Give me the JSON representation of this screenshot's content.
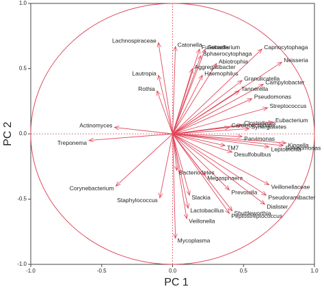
{
  "chart_data": {
    "type": "biplot",
    "xlabel": "PC 1",
    "ylabel": "PC 2",
    "color": "#e0475a",
    "xlim": [
      -1.0,
      1.0
    ],
    "ylim": [
      -1.0,
      1.0
    ],
    "xticks": [
      {
        "value": -1.0,
        "label": "-1.0"
      },
      -0.5,
      {
        "value": 0.0,
        "label": "0.0"
      },
      0.5,
      {
        "value": 1.0,
        "label": "1.0"
      }
    ],
    "yticks": [
      {
        "value": -1.0,
        "label": "-1.0"
      },
      -0.5,
      {
        "value": 0.0,
        "label": "0.0"
      },
      0.5,
      {
        "value": 1.0,
        "label": "1.0"
      }
    ],
    "labels": [
      "Lachnospiraceae",
      "Catonella",
      "Fusobacterium",
      "Gemella",
      "Sphaerocytophaga",
      "Abiotrophia",
      "Aggregatibacter",
      "Haemophilus",
      "Lautropia",
      "Rothia",
      "Capnocytophaga",
      "Neisseria",
      "Granulicatella",
      "Campylobacter",
      "Tannerella",
      "Pseudomonas",
      "Streptococcus",
      "Clostridiales",
      "Eubacterium",
      "Cardiobacterium",
      "Synergistetes",
      "Actinomyces",
      "Parvimonas",
      "Treponema",
      "Kingella",
      "TM7",
      "Desulfobulbus",
      "Leptotrichia",
      "Selenomonas",
      "Bacteriodetes",
      "Megasphaera",
      "Prevotella",
      "Veillonellaceae",
      "Pseudoramibacter",
      "Staphylococcus",
      "Slackia",
      "Corynebacterium",
      "Lactobacillus",
      "Peptostreptococcus",
      "Veillonella",
      "Dialister",
      "Shuttleworthia",
      "Mycoplasma"
    ],
    "x": [
      -0.1,
      0.02,
      0.19,
      0.23,
      0.2,
      0.31,
      0.14,
      0.21,
      -0.1,
      -0.11,
      0.63,
      0.77,
      0.49,
      0.64,
      0.47,
      0.56,
      0.67,
      0.49,
      0.71,
      0.4,
      0.54,
      -0.41,
      0.49,
      -0.59,
      0.8,
      0.37,
      0.42,
      0.68,
      0.78,
      0.03,
      0.23,
      0.4,
      0.68,
      0.66,
      -0.09,
      0.12,
      -0.4,
      0.11,
      0.4,
      0.1,
      0.65,
      0.42,
      0.02
    ],
    "values": [
      0.7,
      0.67,
      0.65,
      0.65,
      0.6,
      0.54,
      0.5,
      0.45,
      0.45,
      0.33,
      0.65,
      0.55,
      0.41,
      0.38,
      0.33,
      0.27,
      0.2,
      0.07,
      0.09,
      0.05,
      0.04,
      0.05,
      -0.02,
      -0.05,
      -0.07,
      -0.09,
      -0.14,
      -0.1,
      -0.09,
      -0.28,
      -0.32,
      -0.43,
      -0.39,
      -0.47,
      -0.49,
      -0.47,
      -0.4,
      -0.57,
      -0.61,
      -0.65,
      -0.54,
      -0.59,
      -0.8
    ]
  }
}
